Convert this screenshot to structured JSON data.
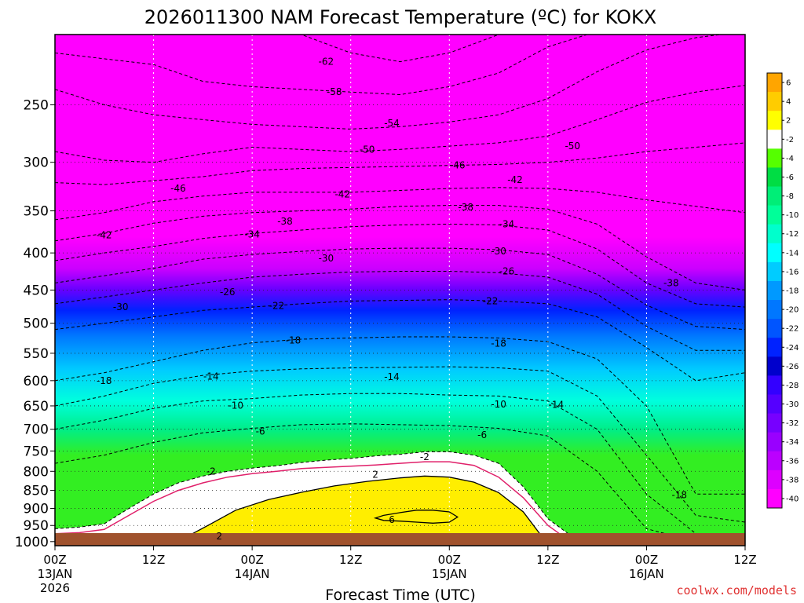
{
  "chart_data": {
    "type": "heatmap",
    "title": "2026011300 NAM Forecast Temperature (ºC) for KOKX",
    "xlabel": "Forecast Time (UTC)",
    "ylabel": "",
    "credit": "coolwx.com/models",
    "x_ticks": [
      {
        "hour": 0,
        "label": "00Z",
        "sub": "13JAN",
        "sub2": "2026"
      },
      {
        "hour": 12,
        "label": "12Z",
        "sub": "",
        "sub2": ""
      },
      {
        "hour": 24,
        "label": "00Z",
        "sub": "14JAN",
        "sub2": ""
      },
      {
        "hour": 36,
        "label": "12Z",
        "sub": "",
        "sub2": ""
      },
      {
        "hour": 48,
        "label": "00Z",
        "sub": "15JAN",
        "sub2": ""
      },
      {
        "hour": 60,
        "label": "12Z",
        "sub": "",
        "sub2": ""
      },
      {
        "hour": 72,
        "label": "00Z",
        "sub": "16JAN",
        "sub2": ""
      },
      {
        "hour": 84,
        "label": "12Z",
        "sub": "",
        "sub2": ""
      }
    ],
    "x_range_hours": [
      0,
      84
    ],
    "y_ticks_hpa": [
      250,
      300,
      350,
      400,
      450,
      500,
      550,
      600,
      650,
      700,
      750,
      800,
      850,
      900,
      950,
      1000
    ],
    "y_range_hpa": [
      200,
      1013
    ],
    "grid": true,
    "colorbar": {
      "position": "right",
      "levels": [
        6,
        4,
        2,
        -2,
        -4,
        -6,
        -8,
        -10,
        -12,
        -14,
        -16,
        -18,
        -20,
        -22,
        -24,
        -26,
        -28,
        -30,
        -32,
        -34,
        -36,
        -38,
        -40
      ],
      "colors": [
        "#ffa500",
        "#ffcc00",
        "#ffff00",
        "#ffffff",
        "#55ff00",
        "#00dd44",
        "#00ee77",
        "#00ff99",
        "#00ffcc",
        "#00ffff",
        "#00ccff",
        "#0099ff",
        "#0077ff",
        "#0055ff",
        "#0022ff",
        "#0000cc",
        "#3300ff",
        "#5500ff",
        "#7700ff",
        "#9900ff",
        "#bb00ff",
        "#dd00ff",
        "#ff00ff"
      ]
    },
    "series": [
      {
        "value": -62,
        "x": [
          0,
          6,
          12,
          18,
          24,
          30,
          36,
          42,
          48,
          54,
          60,
          66,
          72,
          78,
          84
        ],
        "p": [
          190,
          190,
          190,
          195,
          190,
          200,
          212,
          218,
          212,
          200,
          190,
          188,
          188,
          188,
          188
        ]
      },
      {
        "value": -58,
        "x": [
          0,
          6,
          12,
          18,
          24,
          30,
          36,
          42,
          48,
          54,
          60,
          66,
          72,
          78,
          84
        ],
        "p": [
          212,
          216,
          220,
          232,
          236,
          238,
          240,
          242,
          236,
          226,
          208,
          198,
          192,
          190,
          190
        ]
      },
      {
        "value": -54,
        "x": [
          0,
          6,
          12,
          18,
          24,
          30,
          36,
          42,
          48,
          54,
          60,
          66,
          72,
          78,
          84
        ],
        "p": [
          238,
          250,
          258,
          262,
          266,
          268,
          270,
          268,
          264,
          258,
          245,
          225,
          210,
          202,
          198
        ]
      },
      {
        "value": -50,
        "x": [
          0,
          6,
          12,
          18,
          24,
          30,
          36,
          42,
          48,
          54,
          60,
          66,
          72,
          78,
          84
        ],
        "p": [
          290,
          298,
          300,
          292,
          286,
          288,
          290,
          288,
          285,
          282,
          276,
          262,
          248,
          240,
          235
        ]
      },
      {
        "value": -46,
        "x": [
          0,
          6,
          12,
          18,
          24,
          30,
          36,
          42,
          48,
          54,
          60,
          66,
          72,
          78,
          84
        ],
        "p": [
          320,
          322,
          318,
          314,
          308,
          306,
          305,
          304,
          303,
          302,
          300,
          296,
          290,
          286,
          282
        ]
      },
      {
        "value": -42,
        "x": [
          0,
          6,
          12,
          18,
          24,
          30,
          36,
          42,
          48,
          54,
          60,
          66,
          72,
          78,
          84
        ],
        "p": [
          360,
          352,
          340,
          334,
          330,
          330,
          330,
          328,
          326,
          325,
          326,
          330,
          338,
          345,
          352
        ]
      },
      {
        "value": -38,
        "x": [
          0,
          6,
          12,
          18,
          24,
          30,
          36,
          42,
          48,
          54,
          60,
          66,
          72,
          78,
          84
        ],
        "p": [
          385,
          376,
          364,
          356,
          352,
          350,
          348,
          345,
          344,
          344,
          348,
          365,
          405,
          440,
          450
        ]
      },
      {
        "value": -34,
        "x": [
          0,
          6,
          12,
          18,
          24,
          30,
          36,
          42,
          48,
          54,
          60,
          66,
          72,
          78,
          84
        ],
        "p": [
          410,
          400,
          392,
          382,
          376,
          372,
          368,
          366,
          365,
          366,
          372,
          395,
          440,
          470,
          475
        ]
      },
      {
        "value": -30,
        "x": [
          0,
          6,
          12,
          18,
          24,
          30,
          36,
          42,
          48,
          54,
          60,
          66,
          72,
          78,
          84
        ],
        "p": [
          440,
          430,
          420,
          408,
          402,
          398,
          395,
          394,
          394,
          396,
          402,
          428,
          472,
          505,
          510
        ]
      },
      {
        "value": -26,
        "x": [
          0,
          6,
          12,
          18,
          24,
          30,
          36,
          42,
          48,
          54,
          60,
          66,
          72,
          78,
          84
        ],
        "p": [
          470,
          460,
          450,
          440,
          432,
          428,
          425,
          424,
          424,
          426,
          432,
          456,
          505,
          545,
          545
        ]
      },
      {
        "value": -22,
        "x": [
          0,
          6,
          12,
          18,
          24,
          30,
          36,
          42,
          48,
          54,
          60,
          66,
          72,
          78,
          84
        ],
        "p": [
          510,
          500,
          490,
          480,
          475,
          470,
          466,
          465,
          464,
          466,
          470,
          490,
          540,
          600,
          585
        ]
      },
      {
        "value": -18,
        "x": [
          0,
          6,
          12,
          18,
          24,
          30,
          36,
          42,
          48,
          54,
          60,
          66,
          72,
          78,
          84
        ],
        "p": [
          600,
          585,
          565,
          545,
          532,
          526,
          524,
          522,
          522,
          524,
          530,
          560,
          650,
          860,
          860
        ]
      },
      {
        "value": -14,
        "x": [
          0,
          6,
          12,
          18,
          24,
          30,
          36,
          42,
          48,
          54,
          60,
          66,
          72,
          78,
          84
        ],
        "p": [
          650,
          630,
          605,
          590,
          582,
          578,
          576,
          575,
          574,
          576,
          582,
          630,
          760,
          920,
          940
        ]
      },
      {
        "value": -10,
        "x": [
          0,
          6,
          12,
          18,
          24,
          30,
          36,
          42,
          48,
          54,
          60,
          66,
          72,
          78,
          84
        ],
        "p": [
          700,
          680,
          655,
          640,
          635,
          628,
          625,
          625,
          628,
          630,
          640,
          700,
          860,
          975,
          985
        ]
      },
      {
        "value": -6,
        "x": [
          0,
          6,
          12,
          18,
          24,
          30,
          36,
          42,
          48,
          54,
          60,
          66,
          72,
          78,
          84
        ],
        "p": [
          780,
          760,
          730,
          708,
          698,
          690,
          688,
          690,
          692,
          698,
          715,
          800,
          960,
          1000,
          1000
        ]
      },
      {
        "value": -2,
        "x": [
          0,
          3,
          6,
          9,
          12,
          15,
          18,
          21,
          24,
          27,
          30,
          33,
          36,
          39,
          42,
          45,
          48,
          51,
          54,
          57,
          60,
          63,
          66,
          69,
          72,
          75,
          78,
          81,
          84
        ],
        "p": [
          960,
          955,
          945,
          900,
          860,
          830,
          812,
          800,
          792,
          786,
          778,
          772,
          768,
          762,
          758,
          752,
          752,
          760,
          780,
          840,
          930,
          985,
          1005,
          1013,
          1013,
          1013,
          1013,
          1013,
          1013
        ]
      }
    ],
    "zero_isotherm": {
      "x": [
        0,
        3,
        6,
        9,
        12,
        15,
        18,
        21,
        24,
        27,
        30,
        33,
        36,
        39,
        42,
        45,
        48,
        51,
        54,
        57,
        60,
        63,
        66,
        69
      ],
      "p": [
        975,
        972,
        962,
        920,
        880,
        850,
        830,
        815,
        806,
        800,
        793,
        790,
        787,
        784,
        780,
        776,
        776,
        785,
        815,
        870,
        950,
        1005,
        1013,
        1013
      ]
    },
    "warm_contours": [
      {
        "value": 2,
        "x": [
          16,
          19,
          22,
          26,
          30,
          34,
          38,
          42,
          45,
          48,
          51,
          54,
          57,
          59,
          61
        ],
        "p": [
          985,
          945,
          905,
          875,
          855,
          838,
          826,
          817,
          812,
          815,
          828,
          856,
          910,
          975,
          1013
        ]
      },
      {
        "value": 6,
        "x": [
          40,
          42,
          44,
          46,
          48,
          49,
          48,
          46,
          44,
          42,
          40,
          39,
          40
        ],
        "p": [
          920,
          912,
          905,
          905,
          910,
          925,
          940,
          943,
          940,
          937,
          935,
          928,
          920
        ]
      }
    ],
    "labels": [
      {
        "text": "-62",
        "x": 33,
        "y_hpa": 218
      },
      {
        "text": "-58",
        "x": 34,
        "y_hpa": 240
      },
      {
        "text": "-54",
        "x": 41,
        "y_hpa": 265
      },
      {
        "text": "-50",
        "x": 38,
        "y_hpa": 288
      },
      {
        "text": "-50",
        "x": 63,
        "y_hpa": 285
      },
      {
        "text": "-46",
        "x": 15,
        "y_hpa": 326
      },
      {
        "text": "-46",
        "x": 49,
        "y_hpa": 303
      },
      {
        "text": "-42",
        "x": 6,
        "y_hpa": 378
      },
      {
        "text": "-42",
        "x": 35,
        "y_hpa": 332
      },
      {
        "text": "-42",
        "x": 56,
        "y_hpa": 317
      },
      {
        "text": "-38",
        "x": 28,
        "y_hpa": 362
      },
      {
        "text": "-38",
        "x": 50,
        "y_hpa": 346
      },
      {
        "text": "-38",
        "x": 75,
        "y_hpa": 440
      },
      {
        "text": "-34",
        "x": 24,
        "y_hpa": 377
      },
      {
        "text": "-34",
        "x": 55,
        "y_hpa": 365
      },
      {
        "text": "-30",
        "x": 8,
        "y_hpa": 475
      },
      {
        "text": "-30",
        "x": 33,
        "y_hpa": 407
      },
      {
        "text": "-30",
        "x": 54,
        "y_hpa": 398
      },
      {
        "text": "-26",
        "x": 21,
        "y_hpa": 453
      },
      {
        "text": "-26",
        "x": 55,
        "y_hpa": 424
      },
      {
        "text": "-22",
        "x": 27,
        "y_hpa": 473
      },
      {
        "text": "-22",
        "x": 53,
        "y_hpa": 466
      },
      {
        "text": "-18",
        "x": 6,
        "y_hpa": 600
      },
      {
        "text": "-18",
        "x": 29,
        "y_hpa": 528
      },
      {
        "text": "-18",
        "x": 54,
        "y_hpa": 533
      },
      {
        "text": "-18",
        "x": 76,
        "y_hpa": 863
      },
      {
        "text": "-14",
        "x": 19,
        "y_hpa": 592
      },
      {
        "text": "-14",
        "x": 41,
        "y_hpa": 593
      },
      {
        "text": "-14",
        "x": 61,
        "y_hpa": 648
      },
      {
        "text": "-10",
        "x": 22,
        "y_hpa": 649
      },
      {
        "text": "-10",
        "x": 54,
        "y_hpa": 647
      },
      {
        "text": "-6",
        "x": 25,
        "y_hpa": 705
      },
      {
        "text": "-6",
        "x": 52,
        "y_hpa": 713
      },
      {
        "text": "-2",
        "x": 19,
        "y_hpa": 800
      },
      {
        "text": "-2",
        "x": 45,
        "y_hpa": 764
      },
      {
        "text": "2",
        "x": 39,
        "y_hpa": 808
      },
      {
        "text": "2",
        "x": 20,
        "y_hpa": 983
      },
      {
        "text": "6",
        "x": 41,
        "y_hpa": 933
      }
    ]
  }
}
